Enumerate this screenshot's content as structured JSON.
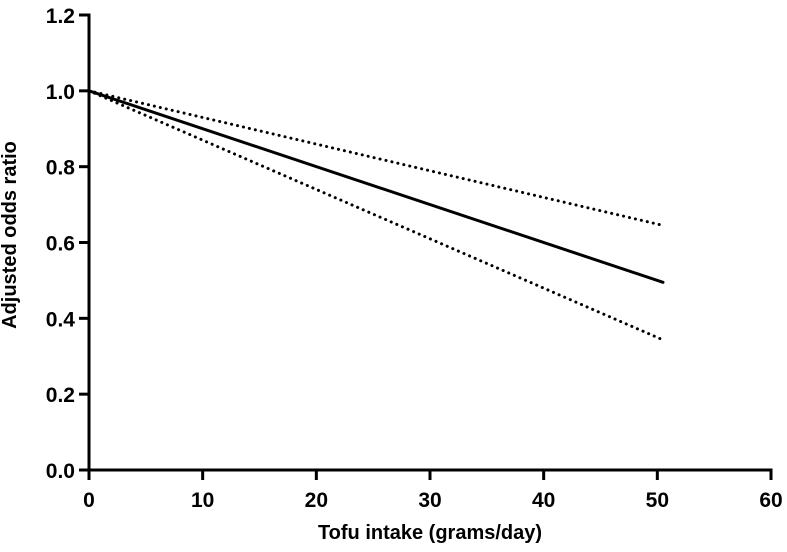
{
  "chart_data": {
    "type": "line",
    "title": "",
    "xlabel": "Tofu intake (grams/day)",
    "ylabel": "Adjusted odds ratio",
    "xlim": [
      0,
      60
    ],
    "ylim": [
      0.0,
      1.2
    ],
    "x_ticks": [
      "0",
      "10",
      "20",
      "30",
      "40",
      "50",
      "60"
    ],
    "y_ticks": [
      "0.0",
      "0.2",
      "0.4",
      "0.6",
      "0.8",
      "1.0",
      "1.2"
    ],
    "grid": false,
    "legend": "none",
    "series": [
      {
        "style": "solid",
        "color": "#000000",
        "x": [
          0,
          50.5
        ],
        "y": [
          1.0,
          0.495
        ]
      },
      {
        "style": "dotted",
        "color": "#000000",
        "x": [
          0,
          50.5
        ],
        "y": [
          1.0,
          0.645
        ]
      },
      {
        "style": "dotted",
        "color": "#000000",
        "x": [
          0,
          50.5
        ],
        "y": [
          1.0,
          0.343
        ]
      }
    ]
  }
}
